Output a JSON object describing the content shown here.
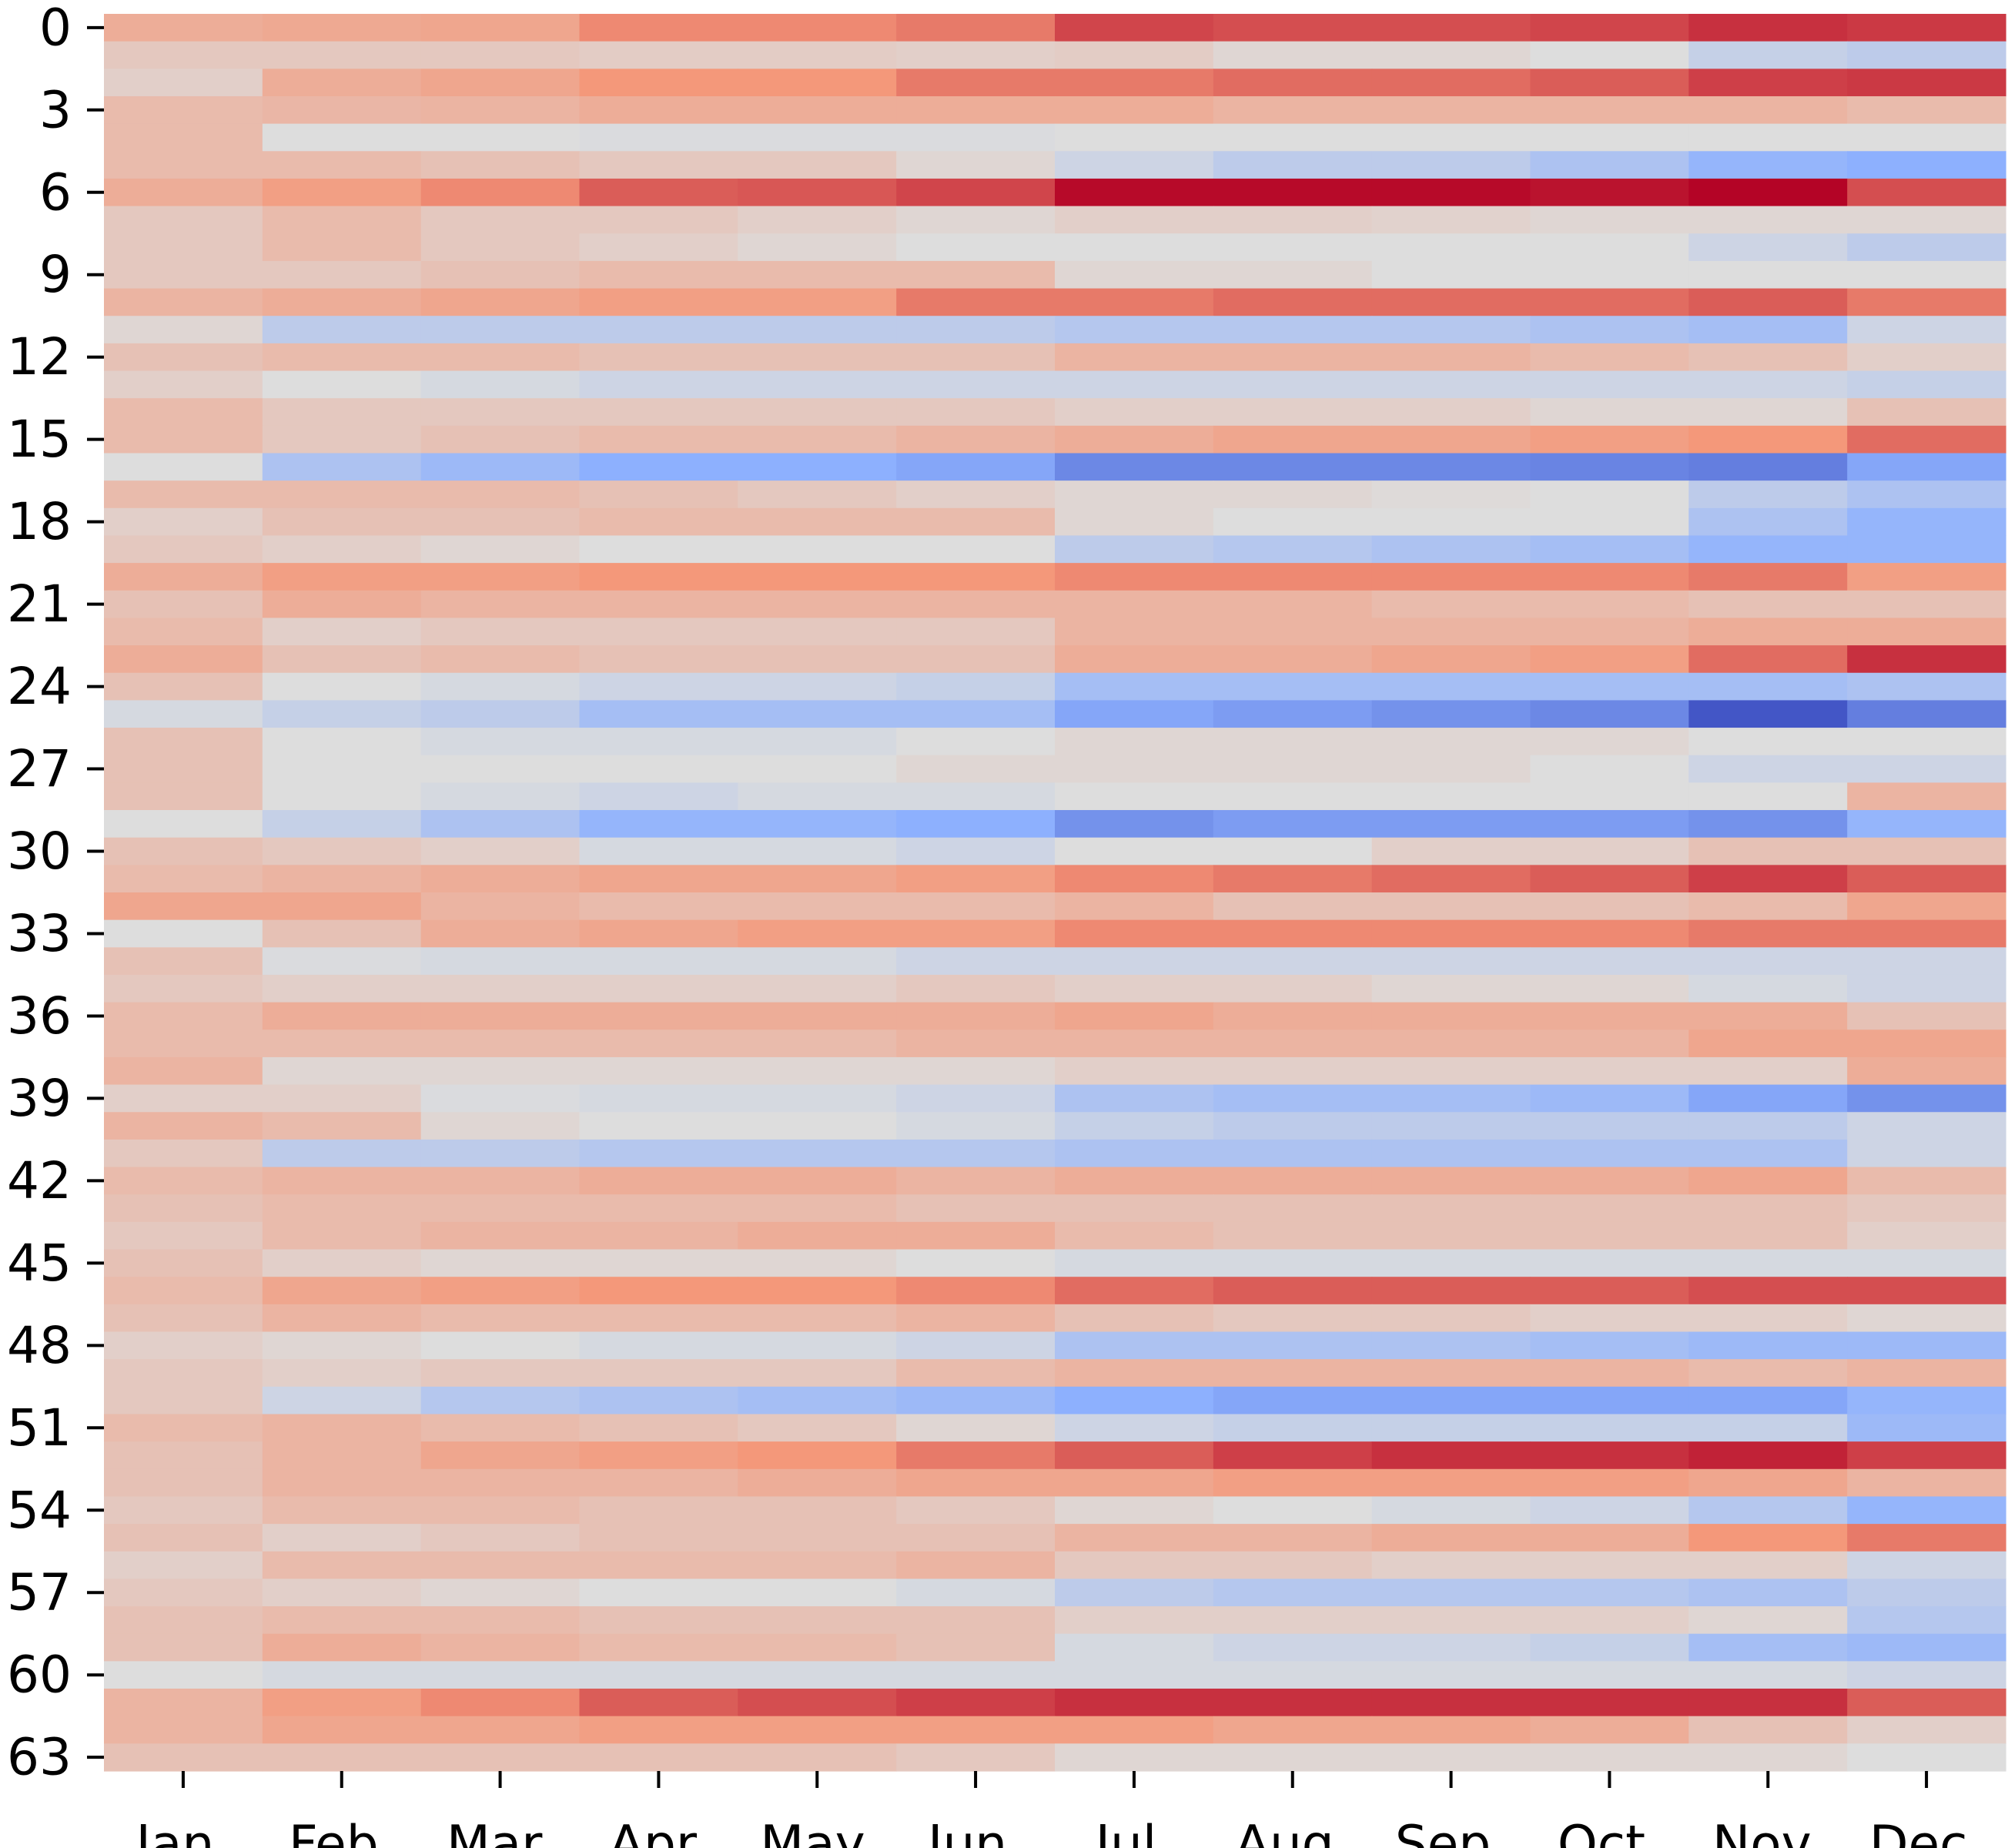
{
  "chart_data": {
    "type": "heatmap",
    "colormap": "coolwarm",
    "vmin": -1,
    "vmax": 1,
    "title": "",
    "xlabel": "",
    "ylabel": "",
    "x_categories": [
      "Jan.",
      "Feb.",
      "Mar.",
      "Apr.",
      "May.",
      "Jun.",
      "Jul.",
      "Aug.",
      "Sep.",
      "Oct.",
      "Nov.",
      "Dec."
    ],
    "y_tick_labels": [
      "0",
      "3",
      "6",
      "9",
      "12",
      "15",
      "18",
      "21",
      "24",
      "27",
      "30",
      "33",
      "36",
      "39",
      "42",
      "45",
      "48",
      "51",
      "54",
      "57",
      "60",
      "63"
    ],
    "y_tick_step": 3,
    "values": [
      [
        0.35,
        0.38,
        0.4,
        0.55,
        0.55,
        0.6,
        0.78,
        0.75,
        0.75,
        0.78,
        0.85,
        0.82
      ],
      [
        0.15,
        0.15,
        0.15,
        0.12,
        0.12,
        0.1,
        0.12,
        0.05,
        0.05,
        0.0,
        -0.15,
        -0.2
      ],
      [
        0.1,
        0.35,
        0.4,
        0.5,
        0.5,
        0.6,
        0.6,
        0.65,
        0.65,
        0.7,
        0.8,
        0.82
      ],
      [
        0.25,
        0.28,
        0.3,
        0.35,
        0.35,
        0.35,
        0.35,
        0.3,
        0.3,
        0.3,
        0.3,
        0.25
      ],
      [
        0.25,
        0.0,
        0.0,
        -0.02,
        -0.02,
        -0.02,
        0.0,
        0.0,
        0.0,
        0.0,
        0.0,
        0.0
      ],
      [
        0.25,
        0.25,
        0.2,
        0.15,
        0.15,
        0.05,
        -0.1,
        -0.2,
        -0.2,
        -0.3,
        -0.45,
        -0.5
      ],
      [
        0.35,
        0.45,
        0.55,
        0.7,
        0.72,
        0.78,
        0.98,
        0.98,
        0.98,
        0.95,
        1.0,
        0.75
      ],
      [
        0.15,
        0.25,
        0.15,
        0.15,
        0.1,
        0.05,
        0.1,
        0.1,
        0.08,
        0.05,
        0.05,
        0.05
      ],
      [
        0.15,
        0.25,
        0.15,
        0.1,
        0.05,
        0.0,
        0.0,
        0.0,
        0.0,
        0.0,
        -0.1,
        -0.2
      ],
      [
        0.15,
        0.15,
        0.2,
        0.25,
        0.25,
        0.25,
        0.05,
        0.05,
        0.0,
        0.0,
        0.0,
        0.0
      ],
      [
        0.3,
        0.35,
        0.4,
        0.45,
        0.45,
        0.6,
        0.6,
        0.65,
        0.65,
        0.65,
        0.7,
        0.6
      ],
      [
        0.05,
        -0.2,
        -0.2,
        -0.2,
        -0.2,
        -0.2,
        -0.25,
        -0.25,
        -0.25,
        -0.3,
        -0.35,
        -0.1
      ],
      [
        0.2,
        0.25,
        0.25,
        0.2,
        0.2,
        0.2,
        0.3,
        0.3,
        0.3,
        0.25,
        0.2,
        0.1
      ],
      [
        0.1,
        0.0,
        -0.05,
        -0.1,
        -0.1,
        -0.1,
        -0.1,
        -0.1,
        -0.1,
        -0.1,
        -0.1,
        -0.15
      ],
      [
        0.25,
        0.15,
        0.15,
        0.15,
        0.15,
        0.15,
        0.1,
        0.1,
        0.1,
        0.05,
        0.05,
        0.2
      ],
      [
        0.25,
        0.15,
        0.2,
        0.25,
        0.25,
        0.3,
        0.35,
        0.4,
        0.4,
        0.45,
        0.5,
        0.65
      ],
      [
        0.0,
        -0.3,
        -0.4,
        -0.5,
        -0.5,
        -0.55,
        -0.7,
        -0.7,
        -0.7,
        -0.72,
        -0.75,
        -0.55
      ],
      [
        0.25,
        0.25,
        0.25,
        0.2,
        0.15,
        0.1,
        0.05,
        0.05,
        0.02,
        0.0,
        -0.2,
        -0.3
      ],
      [
        0.1,
        0.2,
        0.2,
        0.25,
        0.25,
        0.25,
        0.05,
        0.0,
        0.0,
        0.0,
        -0.3,
        -0.45
      ],
      [
        0.15,
        0.1,
        0.05,
        0.0,
        0.0,
        0.0,
        -0.2,
        -0.25,
        -0.3,
        -0.35,
        -0.45,
        -0.45
      ],
      [
        0.35,
        0.45,
        0.45,
        0.5,
        0.5,
        0.5,
        0.55,
        0.55,
        0.55,
        0.55,
        0.6,
        0.45
      ],
      [
        0.2,
        0.35,
        0.3,
        0.3,
        0.3,
        0.3,
        0.3,
        0.3,
        0.25,
        0.25,
        0.2,
        0.2
      ],
      [
        0.25,
        0.1,
        0.15,
        0.15,
        0.15,
        0.15,
        0.3,
        0.3,
        0.3,
        0.3,
        0.35,
        0.35
      ],
      [
        0.35,
        0.2,
        0.25,
        0.2,
        0.2,
        0.2,
        0.35,
        0.35,
        0.4,
        0.45,
        0.65,
        0.85
      ],
      [
        0.2,
        0.0,
        -0.05,
        -0.1,
        -0.1,
        -0.15,
        -0.35,
        -0.35,
        -0.35,
        -0.35,
        -0.35,
        -0.3
      ],
      [
        -0.05,
        -0.15,
        -0.2,
        -0.35,
        -0.35,
        -0.35,
        -0.55,
        -0.6,
        -0.65,
        -0.7,
        -0.95,
        -0.75
      ],
      [
        0.2,
        0.0,
        -0.05,
        -0.05,
        -0.05,
        0.0,
        0.05,
        0.05,
        0.05,
        0.05,
        0.0,
        0.0
      ],
      [
        0.2,
        0.0,
        0.0,
        0.0,
        0.0,
        0.05,
        0.05,
        0.05,
        0.05,
        0.0,
        -0.1,
        -0.1
      ],
      [
        0.2,
        0.0,
        -0.05,
        -0.1,
        -0.05,
        -0.05,
        0.0,
        0.0,
        0.0,
        0.0,
        0.0,
        0.3
      ],
      [
        0.0,
        -0.15,
        -0.3,
        -0.45,
        -0.45,
        -0.5,
        -0.65,
        -0.6,
        -0.6,
        -0.6,
        -0.65,
        -0.45
      ],
      [
        0.2,
        0.15,
        0.1,
        -0.05,
        -0.05,
        -0.1,
        0.0,
        0.0,
        0.1,
        0.1,
        0.2,
        0.2
      ],
      [
        0.25,
        0.3,
        0.35,
        0.4,
        0.4,
        0.45,
        0.55,
        0.6,
        0.65,
        0.7,
        0.8,
        0.7
      ],
      [
        0.4,
        0.4,
        0.3,
        0.25,
        0.25,
        0.25,
        0.3,
        0.2,
        0.2,
        0.2,
        0.25,
        0.4
      ],
      [
        0.0,
        0.2,
        0.35,
        0.4,
        0.45,
        0.45,
        0.55,
        0.55,
        0.55,
        0.55,
        0.6,
        0.6
      ],
      [
        0.2,
        -0.02,
        -0.05,
        -0.05,
        -0.05,
        -0.1,
        -0.1,
        -0.1,
        -0.1,
        -0.1,
        -0.1,
        -0.1
      ],
      [
        0.15,
        0.1,
        0.1,
        0.1,
        0.1,
        0.15,
        0.1,
        0.1,
        0.05,
        0.05,
        -0.05,
        -0.1
      ],
      [
        0.25,
        0.35,
        0.35,
        0.35,
        0.35,
        0.35,
        0.4,
        0.35,
        0.35,
        0.35,
        0.35,
        0.2
      ],
      [
        0.25,
        0.25,
        0.25,
        0.25,
        0.25,
        0.3,
        0.3,
        0.3,
        0.3,
        0.3,
        0.4,
        0.4
      ],
      [
        0.3,
        0.05,
        0.05,
        0.05,
        0.05,
        0.05,
        0.1,
        0.1,
        0.1,
        0.1,
        0.1,
        0.35
      ],
      [
        0.1,
        0.1,
        -0.02,
        -0.05,
        -0.05,
        -0.1,
        -0.3,
        -0.35,
        -0.35,
        -0.4,
        -0.55,
        -0.65
      ],
      [
        0.3,
        0.25,
        0.05,
        0.0,
        0.0,
        -0.05,
        -0.15,
        -0.2,
        -0.2,
        -0.2,
        -0.2,
        -0.1
      ],
      [
        0.15,
        -0.2,
        -0.2,
        -0.25,
        -0.25,
        -0.25,
        -0.3,
        -0.3,
        -0.3,
        -0.3,
        -0.3,
        -0.1
      ],
      [
        0.25,
        0.3,
        0.3,
        0.35,
        0.35,
        0.3,
        0.35,
        0.35,
        0.35,
        0.35,
        0.4,
        0.25
      ],
      [
        0.2,
        0.25,
        0.25,
        0.25,
        0.25,
        0.2,
        0.2,
        0.2,
        0.2,
        0.2,
        0.2,
        0.15
      ],
      [
        0.15,
        0.25,
        0.3,
        0.3,
        0.35,
        0.35,
        0.25,
        0.2,
        0.2,
        0.2,
        0.2,
        0.1
      ],
      [
        0.2,
        0.1,
        0.05,
        0.05,
        0.05,
        0.0,
        -0.05,
        -0.05,
        -0.05,
        -0.05,
        -0.05,
        -0.05
      ],
      [
        0.25,
        0.4,
        0.45,
        0.5,
        0.5,
        0.55,
        0.65,
        0.7,
        0.7,
        0.7,
        0.75,
        0.75
      ],
      [
        0.2,
        0.3,
        0.25,
        0.25,
        0.25,
        0.3,
        0.2,
        0.15,
        0.15,
        0.1,
        0.1,
        0.05
      ],
      [
        0.1,
        0.05,
        0.0,
        -0.05,
        -0.05,
        -0.1,
        -0.3,
        -0.3,
        -0.3,
        -0.35,
        -0.4,
        -0.4
      ],
      [
        0.15,
        0.1,
        0.15,
        0.15,
        0.15,
        0.25,
        0.3,
        0.3,
        0.3,
        0.3,
        0.25,
        0.3
      ],
      [
        0.15,
        -0.1,
        -0.25,
        -0.3,
        -0.35,
        -0.4,
        -0.5,
        -0.55,
        -0.55,
        -0.55,
        -0.55,
        -0.45
      ],
      [
        0.25,
        0.3,
        0.25,
        0.2,
        0.15,
        0.05,
        -0.1,
        -0.15,
        -0.15,
        -0.15,
        -0.15,
        -0.4
      ],
      [
        0.2,
        0.3,
        0.4,
        0.45,
        0.5,
        0.6,
        0.7,
        0.8,
        0.85,
        0.85,
        0.9,
        0.8
      ],
      [
        0.2,
        0.3,
        0.3,
        0.3,
        0.35,
        0.4,
        0.4,
        0.45,
        0.45,
        0.45,
        0.4,
        0.3
      ],
      [
        0.15,
        0.25,
        0.25,
        0.2,
        0.2,
        0.15,
        0.05,
        0.0,
        -0.05,
        -0.1,
        -0.25,
        -0.45
      ],
      [
        0.2,
        0.1,
        0.15,
        0.2,
        0.2,
        0.2,
        0.3,
        0.3,
        0.35,
        0.35,
        0.5,
        0.6
      ],
      [
        0.1,
        0.25,
        0.25,
        0.25,
        0.25,
        0.3,
        0.15,
        0.15,
        0.1,
        0.1,
        0.1,
        -0.1
      ],
      [
        0.15,
        0.1,
        0.05,
        0.0,
        0.0,
        -0.05,
        -0.2,
        -0.25,
        -0.25,
        -0.25,
        -0.3,
        -0.2
      ],
      [
        0.2,
        0.25,
        0.25,
        0.2,
        0.2,
        0.2,
        0.1,
        0.1,
        0.1,
        0.1,
        0.05,
        -0.25
      ],
      [
        0.2,
        0.35,
        0.3,
        0.25,
        0.25,
        0.2,
        -0.05,
        -0.1,
        -0.1,
        -0.15,
        -0.35,
        -0.4
      ],
      [
        0.0,
        -0.05,
        -0.05,
        -0.05,
        -0.05,
        -0.05,
        -0.05,
        -0.05,
        -0.05,
        -0.05,
        -0.05,
        -0.1
      ],
      [
        0.3,
        0.45,
        0.55,
        0.7,
        0.75,
        0.8,
        0.85,
        0.85,
        0.85,
        0.85,
        0.85,
        0.7
      ],
      [
        0.3,
        0.4,
        0.4,
        0.45,
        0.45,
        0.45,
        0.45,
        0.4,
        0.4,
        0.35,
        0.2,
        0.1
      ],
      [
        0.2,
        0.2,
        0.2,
        0.2,
        0.2,
        0.15,
        0.05,
        0.05,
        0.05,
        0.05,
        0.05,
        0.0
      ]
    ]
  }
}
